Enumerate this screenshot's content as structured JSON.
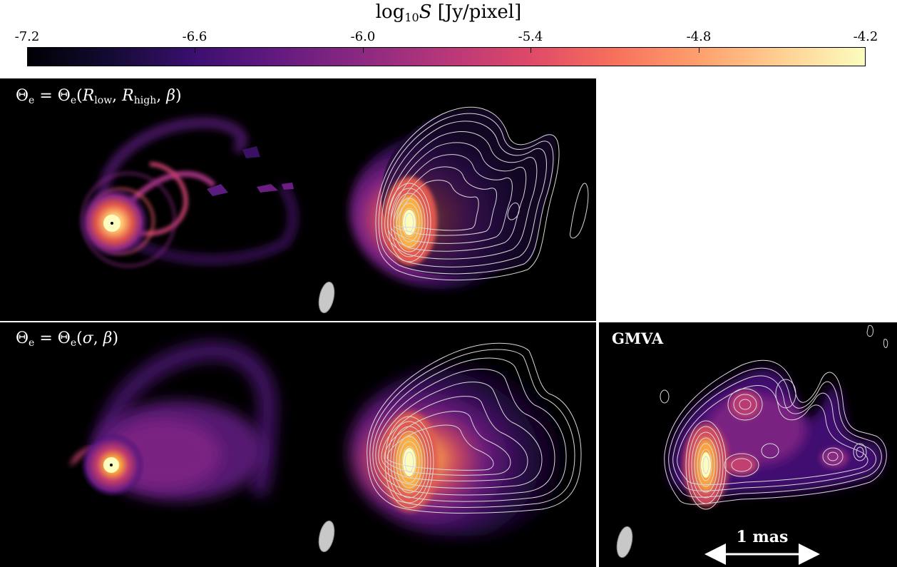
{
  "colorbar": {
    "title_main": "log",
    "title_sub": "10",
    "title_var": "S",
    "title_unit": " [Jy/pixel]",
    "ticks": [
      "-7.2",
      "-6.6",
      "-6.0",
      "-5.4",
      "-4.8",
      "-4.2"
    ],
    "range": [
      -7.2,
      -4.2
    ],
    "colormap": "inferno"
  },
  "panels": {
    "top": {
      "label_prefix": "Θ",
      "label_prefix_sub": "e",
      "label_mid": " = Θ",
      "label_mid_sub": "e",
      "label_args_open": "(",
      "label_r1": "R",
      "label_r1_sub": "low",
      "label_comma1": ", ",
      "label_r2": "R",
      "label_r2_sub": "high",
      "label_comma2": ", ",
      "label_beta": "β",
      "label_close": ")"
    },
    "bottom": {
      "label_prefix": "Θ",
      "label_prefix_sub": "e",
      "label_mid": " = Θ",
      "label_mid_sub": "e",
      "label_args_open": "(",
      "label_sigma": "σ",
      "label_comma": ", ",
      "label_beta": "β",
      "label_close": ")"
    },
    "gmva": {
      "label": "GMVA",
      "scale_bar_label": "1 mas"
    }
  },
  "colors": {
    "background": "#000000",
    "contour": "#d8d8d8",
    "beam": "#c8c8c8"
  }
}
